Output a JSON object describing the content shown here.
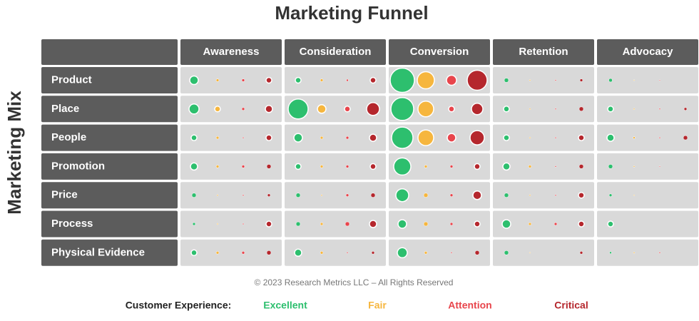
{
  "chart_data": {
    "type": "bubble-matrix",
    "title": "Marketing Funnel",
    "y_label": "Marketing Mix",
    "columns": [
      "Awareness",
      "Consideration",
      "Conversion",
      "Retention",
      "Advocacy"
    ],
    "rows": [
      "Product",
      "Place",
      "People",
      "Promotion",
      "Price",
      "Process",
      "Physical Evidence"
    ],
    "legend_title": "Customer Experience:",
    "footer": "© 2023 Research Metrics LLC – All Rights Reserved",
    "series": [
      {
        "name": "Excellent",
        "color": "#2dbf6e",
        "values": [
          [
            6,
            4,
            17,
            3,
            2.5
          ],
          [
            7,
            14,
            16,
            4,
            4
          ],
          [
            4,
            6,
            15,
            4,
            5
          ],
          [
            5,
            4,
            12,
            5,
            3
          ],
          [
            3,
            3,
            9,
            3,
            2
          ],
          [
            2,
            3,
            6,
            6,
            4
          ],
          [
            4,
            5,
            7,
            3,
            1.5
          ]
        ]
      },
      {
        "name": "Fair",
        "color": "#f6b63e",
        "values": [
          [
            2,
            2,
            12,
            1,
            0.8
          ],
          [
            4,
            6,
            11,
            1,
            1
          ],
          [
            2,
            2,
            11,
            1,
            1.5
          ],
          [
            2,
            2,
            2,
            2,
            1
          ],
          [
            1,
            1,
            3,
            1,
            0.8
          ],
          [
            1,
            2,
            3,
            2,
            null
          ],
          [
            2,
            2,
            2,
            0.8,
            1
          ]
        ]
      },
      {
        "name": "Attention",
        "color": "#e8454c",
        "values": [
          [
            2,
            1.5,
            7,
            1,
            0.8
          ],
          [
            2,
            4,
            4,
            1,
            1
          ],
          [
            1,
            2,
            6,
            1,
            1
          ],
          [
            2,
            2,
            2,
            1,
            0.8
          ],
          [
            1,
            2,
            2,
            1,
            null
          ],
          [
            1,
            3,
            2,
            2,
            null
          ],
          [
            2,
            1,
            1,
            null,
            1
          ]
        ]
      },
      {
        "name": "Critical",
        "color": "#b5272d",
        "values": [
          [
            4,
            4,
            14,
            2,
            null
          ],
          [
            5,
            9,
            8,
            3,
            2
          ],
          [
            4,
            5,
            10,
            4,
            3
          ],
          [
            3,
            4,
            4,
            3,
            null
          ],
          [
            2,
            3,
            6,
            4,
            null
          ],
          [
            4,
            5,
            4,
            4,
            null
          ],
          [
            3,
            2,
            3,
            2,
            null
          ]
        ]
      }
    ]
  }
}
